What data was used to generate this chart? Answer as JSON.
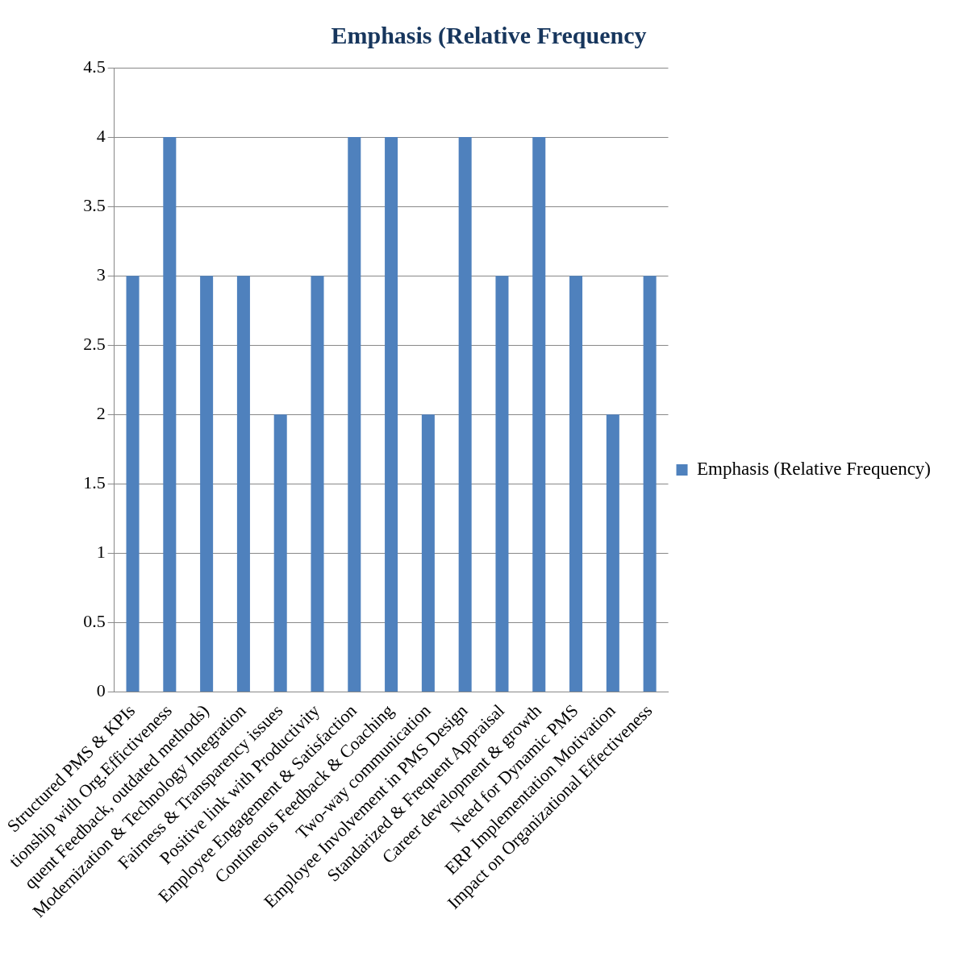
{
  "chart_data": {
    "type": "bar",
    "title": "Emphasis (Relative Frequency",
    "categories": [
      "Structured PMS & KPIs",
      "tionship with Org.Effictiveness",
      "quent Feedback, outdated methods)",
      "Modernization & Technology Integration",
      "Fairness & Transparency issues",
      "Positive link with Productivity",
      "Employee Engagement & Satisfaction",
      "Contineous Feedback & Coaching",
      "Two-way communication",
      "Employee Involvement in PMS Design",
      "Standarized & Frequent Appraisal",
      "Career development & growth",
      "Need for Dynamic PMS",
      "ERP Implementation Motivation",
      "Impact on Organizational Effectiveness"
    ],
    "series": [
      {
        "name": "Emphasis (Relative Frequency)",
        "color": "#4f81bd",
        "values": [
          3,
          4,
          3,
          3,
          2,
          3,
          4,
          4,
          2,
          4,
          3,
          4,
          3,
          2,
          3
        ]
      }
    ],
    "ylim": [
      0,
      4.5
    ],
    "yticks": [
      0,
      0.5,
      1,
      1.5,
      2,
      2.5,
      3,
      3.5,
      4,
      4.5
    ],
    "grid": "y",
    "legend": "right"
  }
}
